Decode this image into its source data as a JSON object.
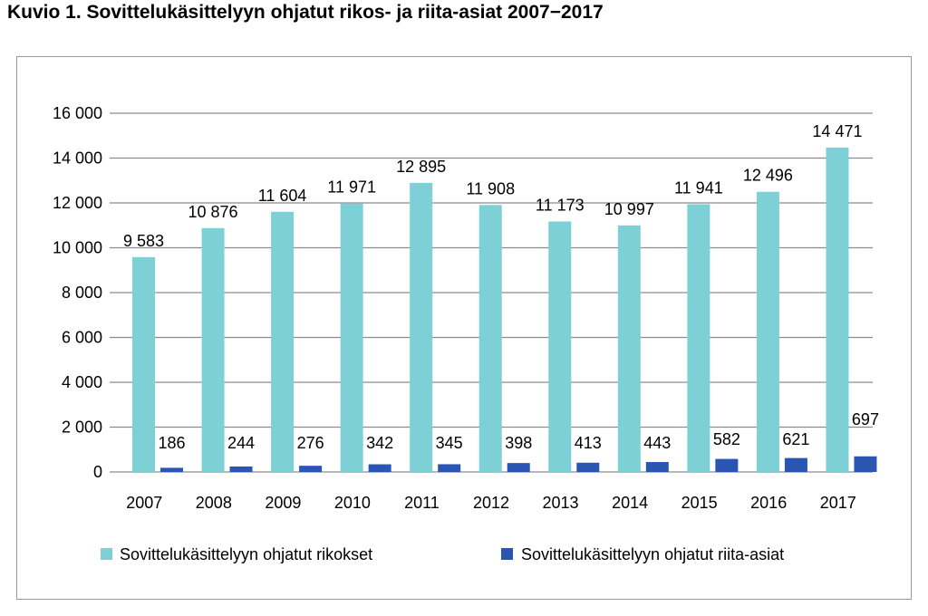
{
  "title": "Kuvio 1. Sovittelukäsittelyyn ohjatut rikos- ja riita-asiat 2007−2017",
  "colors": {
    "rikokset": "#7dd0d6",
    "riita": "#2b55b3",
    "grid": "#8c8c8c"
  },
  "chart_data": {
    "type": "bar",
    "categories": [
      "2007",
      "2008",
      "2009",
      "2010",
      "2011",
      "2012",
      "2013",
      "2014",
      "2015",
      "2016",
      "2017"
    ],
    "series": [
      {
        "name": "Sovittelukäsittelyyn ohjatut  rikokset",
        "values": [
          9583,
          10876,
          11604,
          11971,
          12895,
          11908,
          11173,
          10997,
          11941,
          12496,
          14471
        ],
        "labels": [
          "9 583",
          "10 876",
          "11 604",
          "11 971",
          "12 895",
          "11 908",
          "11 173",
          "10 997",
          "11 941",
          "12 496",
          "14 471"
        ]
      },
      {
        "name": "Sovittelukäsittelyyn ohjatut  riita-asiat",
        "values": [
          186,
          244,
          276,
          342,
          345,
          398,
          413,
          443,
          582,
          621,
          697
        ],
        "labels": [
          "186",
          "244",
          "276",
          "342",
          "345",
          "398",
          "413",
          "443",
          "582",
          "621",
          "697"
        ]
      }
    ],
    "yticks": [
      "0",
      "2 000",
      "4 000",
      "6 000",
      "8 000",
      "10 000",
      "12 000",
      "14 000",
      "16 000"
    ],
    "ylim": [
      0,
      16000
    ],
    "grid": true,
    "legend": "bottom"
  }
}
